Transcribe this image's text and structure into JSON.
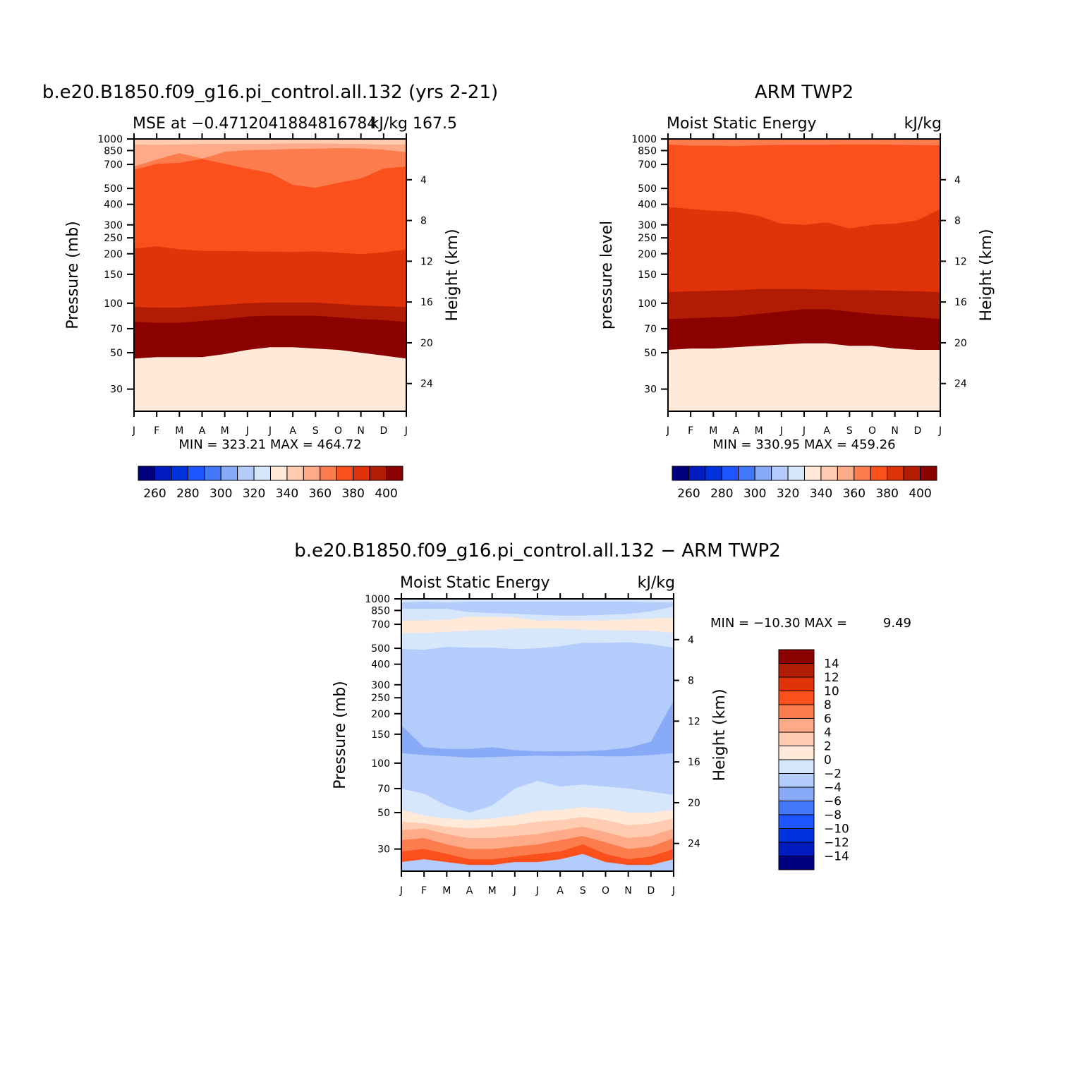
{
  "chart_data": [
    {
      "type": "heatmap",
      "title": "b.e20.B1850.f09_g16.pi_control.all.132 (yrs 2-21)",
      "subtitle_left": "MSE at −0.4712041884816784",
      "subtitle_right": "kJ/kg",
      "subtitle_extra": "167.5",
      "ylabel": "Pressure (mb)",
      "ylabel_right": "Height (km)",
      "x_categories": [
        "J",
        "F",
        "M",
        "A",
        "M",
        "J",
        "J",
        "A",
        "S",
        "O",
        "N",
        "D",
        "J"
      ],
      "y_pressure_ticks": [
        "30",
        "50",
        "70",
        "100",
        "150",
        "200",
        "250",
        "300",
        "400",
        "500",
        "700",
        "850",
        "1000"
      ],
      "y_height_ticks": [
        "24",
        "20",
        "16",
        "12",
        "8",
        "4"
      ],
      "y_scale": "log",
      "y_range_mb": [
        1000,
        22
      ],
      "stats": "MIN =  323.21  MAX =  464.72",
      "contour_boundaries": [
        {
          "level": 400,
          "mb": [
            46,
            47,
            47,
            47,
            49,
            52,
            54,
            54,
            53,
            52,
            50,
            48,
            46
          ]
        },
        {
          "level": 390,
          "mb": [
            56,
            56,
            56,
            57,
            59,
            61,
            62,
            62,
            62,
            61,
            59,
            58,
            56
          ]
        },
        {
          "level": 380,
          "mb": [
            65,
            65,
            65,
            66,
            68,
            71,
            72,
            72,
            72,
            70,
            68,
            67,
            65
          ]
        },
        {
          "level": 370,
          "mb": [
            77,
            76,
            76,
            78,
            80,
            83,
            84,
            84,
            84,
            82,
            80,
            79,
            77
          ]
        },
        {
          "level": 360,
          "mb": [
            95,
            94,
            94,
            96,
            98,
            100,
            101,
            101,
            101,
            99,
            97,
            96,
            95
          ]
        },
        {
          "level": 350,
          "mb": [
            215,
            222,
            213,
            208,
            208,
            207,
            206,
            205,
            207,
            203,
            199,
            204,
            213
          ]
        },
        {
          "level": 340,
          "mb": [
            650,
            705,
            715,
            755,
            705,
            660,
            620,
            525,
            505,
            540,
            575,
            660,
            680
          ]
        },
        {
          "level": 330,
          "mb": [
            680,
            750,
            820,
            760,
            835,
            855,
            860,
            870,
            872,
            880,
            875,
            860,
            830
          ]
        },
        {
          "level": 320,
          "mb": [
            925,
            922,
            925,
            932,
            932,
            932,
            935,
            938,
            938,
            935,
            932,
            925,
            925
          ]
        }
      ],
      "colorbar": {
        "labels": [
          "260",
          "280",
          "300",
          "320",
          "340",
          "360",
          "380",
          "400"
        ]
      }
    },
    {
      "type": "heatmap",
      "title": "ARM TWP2",
      "subtitle_left": "Moist Static Energy",
      "subtitle_right": "kJ/kg",
      "ylabel": "pressure level",
      "ylabel_right": "Height (km)",
      "x_categories": [
        "J",
        "F",
        "M",
        "A",
        "M",
        "J",
        "J",
        "A",
        "S",
        "O",
        "N",
        "D",
        "J"
      ],
      "y_pressure_ticks": [
        "30",
        "50",
        "70",
        "100",
        "150",
        "200",
        "250",
        "300",
        "400",
        "500",
        "700",
        "850",
        "1000"
      ],
      "y_height_ticks": [
        "24",
        "20",
        "16",
        "12",
        "8",
        "4"
      ],
      "y_scale": "log",
      "y_range_mb": [
        1000,
        22
      ],
      "stats": "MIN =  330.95  MAX =  459.26",
      "contour_boundaries": [
        {
          "level": 400,
          "mb": [
            52,
            53,
            53,
            54,
            55,
            56,
            57,
            57,
            55,
            55,
            53,
            52,
            52
          ]
        },
        {
          "level": 390,
          "mb": [
            60,
            61,
            61,
            62,
            63,
            65,
            67,
            67,
            65,
            64,
            62,
            61,
            60
          ]
        },
        {
          "level": 380,
          "mb": [
            69,
            70,
            70,
            71,
            73,
            75,
            77,
            77,
            75,
            73,
            71,
            70,
            69
          ]
        },
        {
          "level": 370,
          "mb": [
            80,
            81,
            82,
            83,
            86,
            89,
            92,
            92,
            89,
            86,
            84,
            82,
            80
          ]
        },
        {
          "level": 360,
          "mb": [
            117,
            118,
            119,
            120,
            122,
            122,
            122,
            121,
            120,
            120,
            119,
            118,
            117
          ]
        },
        {
          "level": 350,
          "mb": [
            385,
            375,
            365,
            360,
            340,
            305,
            300,
            310,
            285,
            300,
            305,
            320,
            375
          ]
        },
        {
          "level": 340,
          "mb": [
            925,
            910,
            910,
            905,
            915,
            920,
            920,
            922,
            925,
            925,
            922,
            918,
            915
          ]
        }
      ],
      "colorbar": {
        "labels": [
          "260",
          "280",
          "300",
          "320",
          "340",
          "360",
          "380",
          "400"
        ]
      }
    },
    {
      "type": "heatmap",
      "title": "b.e20.B1850.f09_g16.pi_control.all.132 − ARM TWP2",
      "subtitle_left": "Moist Static Energy",
      "subtitle_right": "kJ/kg",
      "ylabel": "Pressure (mb)",
      "ylabel_right": "Height (km)",
      "x_categories": [
        "J",
        "F",
        "M",
        "A",
        "M",
        "J",
        "J",
        "A",
        "S",
        "O",
        "N",
        "D",
        "J"
      ],
      "y_pressure_ticks": [
        "30",
        "50",
        "70",
        "100",
        "150",
        "200",
        "250",
        "300",
        "400",
        "500",
        "700",
        "850",
        "1000"
      ],
      "y_height_ticks": [
        "24",
        "20",
        "16",
        "12",
        "8",
        "4"
      ],
      "y_scale": "log",
      "y_range_mb": [
        1000,
        22
      ],
      "stats_label": "MIN = −10.30  MAX =",
      "stats_value": "9.49",
      "contour_boundaries": [
        {
          "level": 6,
          "mb": [
            25,
            26,
            25,
            24,
            24,
            25,
            25,
            26,
            28,
            25,
            24,
            24,
            26
          ]
        },
        {
          "level": 4,
          "mb": [
            29,
            30,
            28,
            26,
            26,
            27,
            28,
            29,
            32,
            28,
            26,
            27,
            30
          ]
        },
        {
          "level": 2,
          "mb": [
            34,
            35,
            32,
            30,
            30,
            31,
            32,
            34,
            36,
            33,
            30,
            31,
            35
          ]
        },
        {
          "level": 0,
          "mb": [
            39,
            40,
            37,
            35,
            35,
            36,
            37,
            39,
            41,
            38,
            35,
            36,
            40
          ]
        },
        {
          "level": -2,
          "mb": [
            44,
            43,
            41,
            40,
            41,
            42,
            44,
            45,
            47,
            45,
            42,
            43,
            46
          ]
        },
        {
          "level": -4,
          "mb": [
            52,
            48,
            46,
            45,
            46,
            48,
            51,
            52,
            54,
            53,
            50,
            50,
            52
          ]
        },
        {
          "level": -6,
          "mb": [
            70,
            65,
            55,
            50,
            55,
            70,
            78,
            72,
            74,
            72,
            70,
            67,
            64
          ]
        },
        {
          "level": -8,
          "mb": [
            115,
            112,
            110,
            108,
            109,
            110,
            111,
            110,
            111,
            110,
            110,
            112,
            115
          ]
        },
        {
          "level": -6,
          "mb": [
            170,
            125,
            122,
            122,
            125,
            120,
            118,
            118,
            118,
            120,
            124,
            135,
            240
          ]
        },
        {
          "level": -4,
          "mb": [
            495,
            490,
            510,
            505,
            505,
            495,
            500,
            515,
            540,
            540,
            545,
            530,
            505
          ]
        },
        {
          "level": -2,
          "mb": [
            620,
            620,
            630,
            640,
            645,
            660,
            660,
            660,
            650,
            645,
            640,
            640,
            620
          ]
        },
        {
          "level": -4,
          "mb": [
            740,
            740,
            745,
            780,
            780,
            770,
            740,
            740,
            740,
            740,
            750,
            760,
            770
          ]
        },
        {
          "level": -6,
          "mb": [
            870,
            870,
            870,
            830,
            820,
            810,
            800,
            790,
            790,
            800,
            810,
            840,
            900
          ]
        },
        {
          "level": -4,
          "mb": [
            950,
            960,
            950,
            960,
            960,
            960,
            960,
            960,
            960,
            960,
            960,
            955,
            950
          ]
        }
      ],
      "colorbar": {
        "labels": [
          "14",
          "12",
          "10",
          "8",
          "6",
          "4",
          "2",
          "0",
          "−2",
          "−4",
          "−6",
          "−8",
          "−10",
          "−12",
          "−14"
        ]
      }
    }
  ],
  "palettes": {
    "absolute": [
      "#00007f",
      "#001bbf",
      "#0033dd",
      "#1f55ff",
      "#4277f7",
      "#88aaf7",
      "#b4ccfc",
      "#d6e7fc",
      "#ffe9d8",
      "#ffccb2",
      "#fcaa88",
      "#fc7c4e",
      "#fb4f1c",
      "#e03309",
      "#b21c04",
      "#8b0000"
    ],
    "difference": [
      "#00007f",
      "#001bbf",
      "#0033dd",
      "#1f55ff",
      "#4277f7",
      "#88aaf7",
      "#b4ccfc",
      "#d6e7fc",
      "#ffe9d8",
      "#ffccb2",
      "#fcaa88",
      "#fc7c4e",
      "#fb4f1c",
      "#e03309",
      "#b21c04",
      "#8b0000"
    ]
  }
}
